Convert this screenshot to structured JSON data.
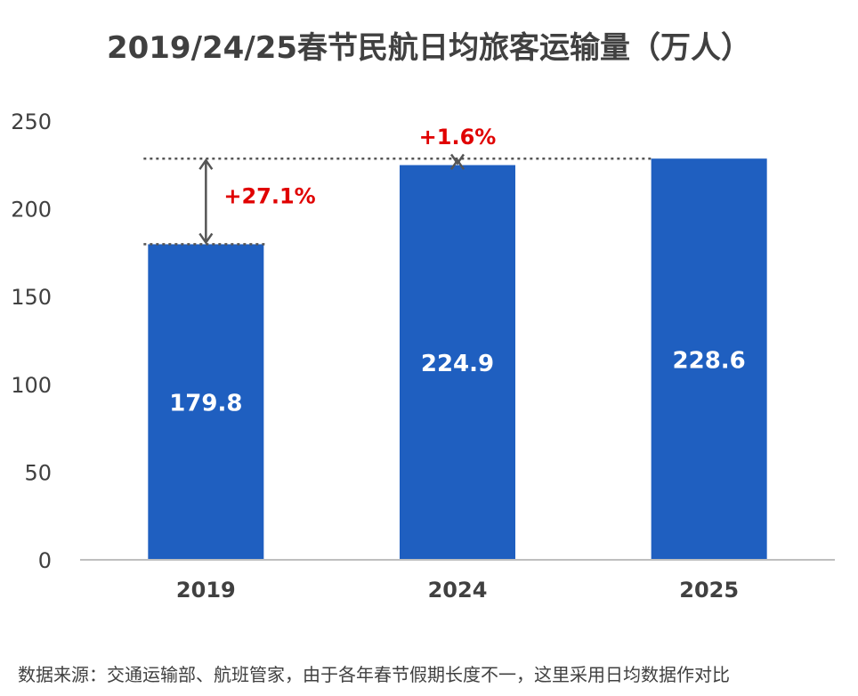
{
  "chart_data": {
    "type": "bar",
    "title": "2019/24/25春节民航日均旅客运输量（万人）",
    "categories": [
      "2019",
      "2024",
      "2025"
    ],
    "values": [
      179.8,
      224.9,
      228.6
    ],
    "data_labels": [
      "179.8",
      "224.9",
      "228.6"
    ],
    "ylim": [
      0,
      250
    ],
    "yticks": [
      0,
      50,
      100,
      150,
      200,
      250
    ],
    "xlabel": "",
    "ylabel": "",
    "grid": false,
    "legend": "none",
    "annotations": [
      {
        "from": "2019",
        "to": "2025",
        "label": "+27.1%"
      },
      {
        "from": "2024",
        "to": "2025",
        "label": "+1.6%"
      }
    ],
    "colors": {
      "bar": "#1f5fc0",
      "annotation_text": "#e00000",
      "axis": "#bfbfbf",
      "reference_line": "#555555",
      "label_text": "#ffffff",
      "tick_text": "#404040"
    }
  },
  "footnote": "数据来源：交通运输部、航班管家，由于各年春节假期长度不一，这里采用日均数据作对比"
}
